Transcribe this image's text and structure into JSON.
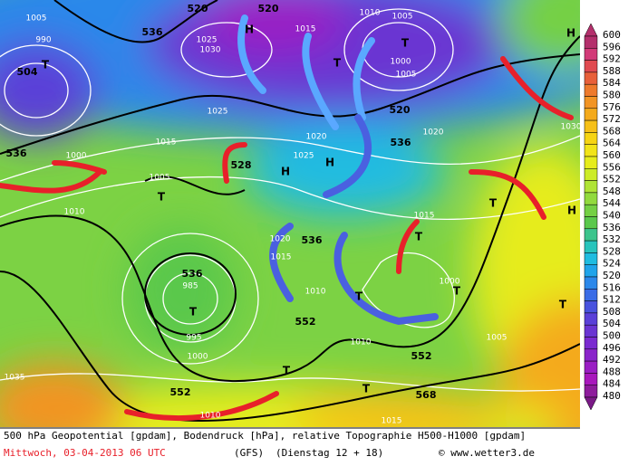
{
  "legend": {
    "labels": [
      600,
      596,
      592,
      588,
      584,
      580,
      576,
      572,
      568,
      564,
      560,
      556,
      552,
      548,
      544,
      540,
      536,
      532,
      528,
      524,
      520,
      516,
      512,
      508,
      504,
      500,
      496,
      492,
      488,
      484,
      480
    ],
    "colors": [
      "#b4306c",
      "#d23a78",
      "#e04a50",
      "#e8603a",
      "#ee7a2c",
      "#f29424",
      "#f4aa1c",
      "#f6c018",
      "#f6d414",
      "#f2e418",
      "#e6ec1c",
      "#cdec28",
      "#b0e436",
      "#92da3e",
      "#74d044",
      "#5ac84c",
      "#3cc48c",
      "#28c4bc",
      "#20bce0",
      "#20a4ea",
      "#2c88ea",
      "#3a6ce6",
      "#4852de",
      "#5a40d8",
      "#6a34d2",
      "#7a2ad0",
      "#8a24ca",
      "#9a1ec4",
      "#a818bc",
      "#8e1c9c",
      "#7a1a86"
    ]
  },
  "contour_labels": [
    "520",
    "520",
    "520",
    "504",
    "536",
    "536",
    "536",
    "536",
    "552",
    "552",
    "552",
    "568",
    "536",
    "528",
    "1005",
    "990",
    "1025",
    "1030",
    "1015",
    "1010",
    "1000",
    "1005",
    "1020",
    "1025",
    "1015",
    "1010",
    "1000",
    "1005",
    "985",
    "995",
    "1000",
    "1025",
    "1010",
    "1015",
    "1005",
    "1030",
    "1010",
    "1020",
    "1015",
    "1005",
    "1000",
    "1035",
    "1010",
    "1015",
    "1020"
  ],
  "markers": [
    "T",
    "T",
    "H",
    "T",
    "T",
    "H",
    "H",
    "T",
    "T",
    "T",
    "T",
    "T",
    "T",
    "H",
    "T",
    "H",
    "T"
  ],
  "footer": {
    "line1": "500 hPa Geopotential [gpdam], Bodendruck [hPa], relative Topographie H500-H1000 [gpdam]",
    "date": "Mittwoch, 03-04-2013  06 UTC",
    "model": "(GFS)",
    "run": "(Dienstag 12 + 18)",
    "credit": "© www.wetter3.de"
  }
}
